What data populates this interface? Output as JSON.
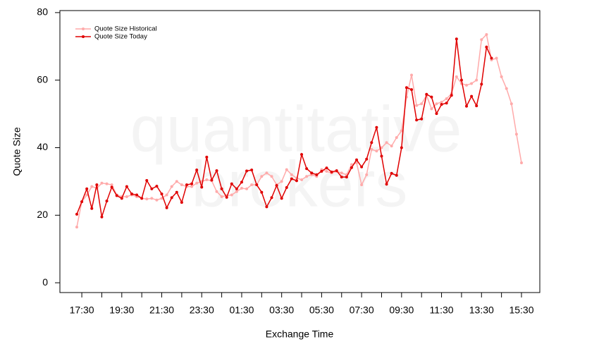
{
  "chart_data": {
    "type": "line",
    "watermark": [
      "quantitative",
      "brokers"
    ],
    "xlabel": "Exchange Time",
    "ylabel": "Quote Size",
    "categories": [
      null,
      "17:30",
      null,
      null,
      null,
      null,
      null,
      null,
      null,
      "19:30",
      null,
      null,
      null,
      null,
      null,
      null,
      null,
      "21:30",
      null,
      null,
      null,
      null,
      null,
      null,
      null,
      "23:30",
      null,
      null,
      null,
      null,
      null,
      null,
      null,
      "01:30",
      null,
      null,
      null,
      null,
      null,
      null,
      null,
      "03:30",
      null,
      null,
      null,
      null,
      null,
      null,
      null,
      "05:30",
      null,
      null,
      null,
      null,
      null,
      null,
      null,
      "07:30",
      null,
      null,
      null,
      null,
      null,
      null,
      null,
      "09:30",
      null,
      null,
      null,
      null,
      null,
      null,
      null,
      "11:30",
      null,
      null,
      null,
      null,
      null,
      null,
      null,
      "13:30",
      null,
      null,
      null,
      null,
      null,
      null,
      null,
      "15:30"
    ],
    "ylim": [
      -2.9,
      80.6
    ],
    "yticks": [
      0,
      20,
      40,
      60,
      80
    ],
    "legend": "top-left",
    "series": [
      {
        "name": "Quote Size Historical",
        "color": "#ffaaaa",
        "values": [
          16.5,
          24,
          26,
          28.5,
          28,
          29.5,
          29.3,
          29,
          26,
          25.5,
          25.5,
          26,
          25.5,
          25,
          24.8,
          25,
          24.5,
          25,
          26,
          28.5,
          30,
          29,
          28.5,
          28.5,
          29.5,
          30,
          30.5,
          30.2,
          27,
          25.5,
          25.8,
          26,
          27,
          28,
          27.8,
          29,
          29,
          31.5,
          32.5,
          31.5,
          29,
          30,
          33.5,
          32,
          31,
          30.5,
          31.5,
          32,
          31.5,
          33.5,
          33,
          32.5,
          33,
          32.5,
          32,
          35,
          35.5,
          29,
          32,
          39.5,
          39,
          40,
          41.5,
          40.5,
          43,
          45,
          55,
          61.5,
          52.5,
          53,
          55.5,
          51.5,
          53,
          53.5,
          54.5,
          56,
          61,
          59,
          58.5,
          59,
          60,
          72,
          73.5,
          66,
          66.5,
          61,
          57.5,
          53,
          44,
          35.5
        ]
      },
      {
        "name": "Quote Size Today",
        "color": "#e00000",
        "values": [
          20.3,
          24,
          27.8,
          22,
          29,
          19.5,
          24.2,
          28.3,
          25.8,
          25,
          28.5,
          26.3,
          26,
          25,
          30.3,
          27.8,
          28.6,
          26.3,
          22.2,
          25.2,
          26.8,
          23.8,
          29,
          29.3,
          33.4,
          28.3,
          37.2,
          30.4,
          33.2,
          27.8,
          25.3,
          29.3,
          27.8,
          29.8,
          33.1,
          33.4,
          29,
          26.8,
          22.5,
          25.2,
          28.8,
          25,
          28.2,
          30.8,
          30.2,
          38,
          33.8,
          32.5,
          32,
          33,
          34,
          32.8,
          33.2,
          31.3,
          31.3,
          34.1,
          36.4,
          34.3,
          36.6,
          41.5,
          46,
          37.5,
          29.2,
          32.4,
          31.8,
          40,
          57.8,
          57.2,
          48.2,
          48.5,
          55.8,
          55,
          50.1,
          52.8,
          53.2,
          55.5,
          72.2,
          60,
          52.3,
          55.2,
          52.4,
          58.8,
          69.8,
          66.5,
          null,
          null,
          null,
          null,
          null,
          null
        ]
      }
    ]
  }
}
